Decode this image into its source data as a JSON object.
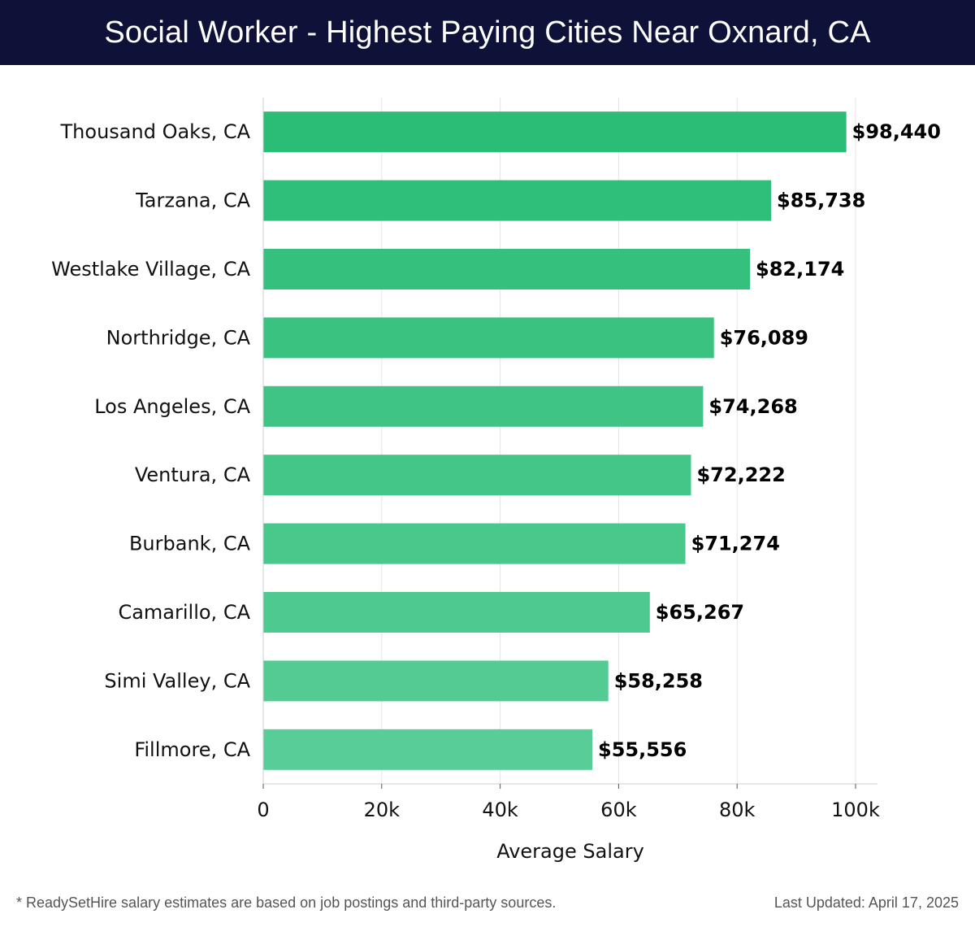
{
  "header": {
    "title": "Social Worker - Highest Paying Cities Near Oxnard, CA"
  },
  "footer": {
    "note": "* ReadySetHire salary estimates are based on job postings and third-party sources.",
    "updated": "Last Updated: April 17, 2025"
  },
  "colors": {
    "header_bg": "#0e1138",
    "bar_dark": "#2bbd76",
    "bar_light": "#58cd97"
  },
  "chart_data": {
    "type": "bar",
    "orientation": "horizontal",
    "title": "Social Worker - Highest Paying Cities Near Oxnard, CA",
    "xlabel": "Average Salary",
    "ylabel": "",
    "xlim": [
      0,
      100000
    ],
    "xticks": [
      0,
      20000,
      40000,
      60000,
      80000,
      100000
    ],
    "xtick_labels": [
      "0",
      "20k",
      "40k",
      "60k",
      "80k",
      "100k"
    ],
    "grid": true,
    "categories": [
      "Thousand Oaks, CA",
      "Tarzana, CA",
      "Westlake Village, CA",
      "Northridge, CA",
      "Los Angeles, CA",
      "Ventura, CA",
      "Burbank, CA",
      "Camarillo, CA",
      "Simi Valley, CA",
      "Fillmore, CA"
    ],
    "values": [
      98440,
      85738,
      82174,
      76089,
      74268,
      72222,
      71274,
      65267,
      58258,
      55556
    ],
    "value_labels": [
      "$98,440",
      "$85,738",
      "$82,174",
      "$76,089",
      "$74,268",
      "$72,222",
      "$71,274",
      "$65,267",
      "$58,258",
      "$55,556"
    ]
  }
}
